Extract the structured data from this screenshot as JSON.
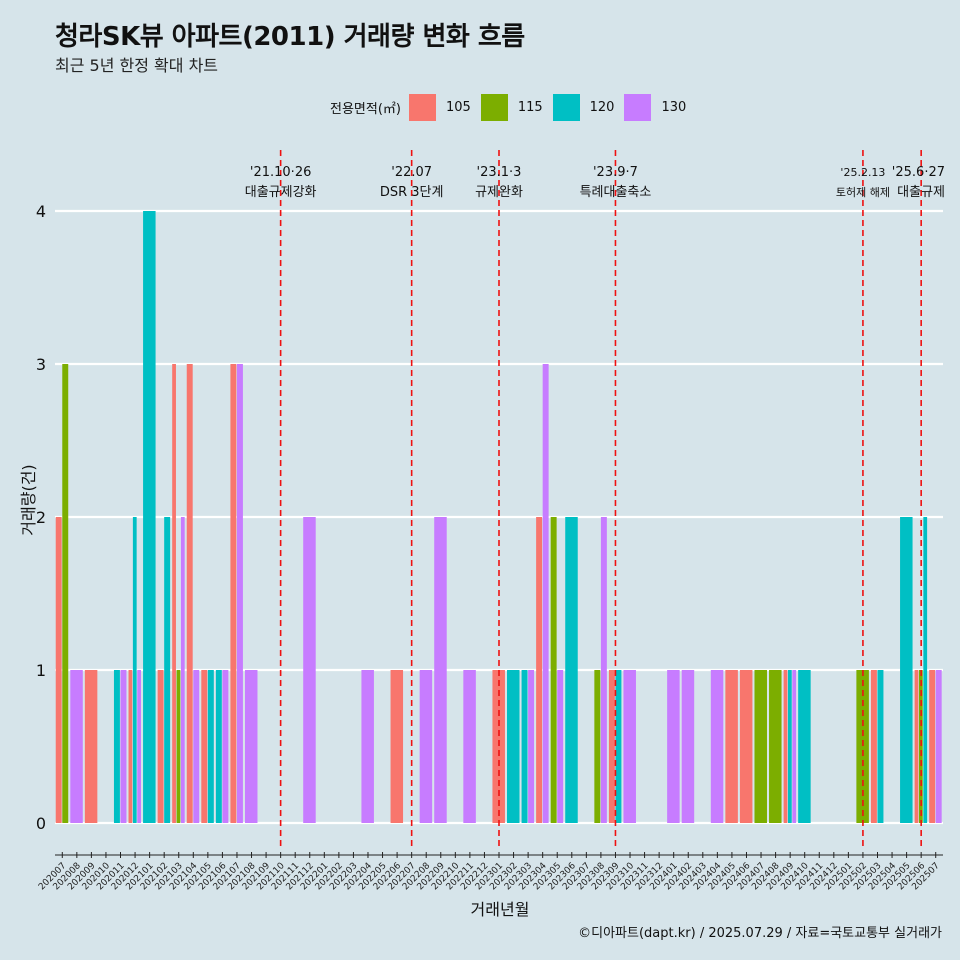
{
  "title": "청라SK뷰 아파트(2011) 거래량 변화 흐름",
  "subtitle": "최근 5년 한정 확대 차트",
  "legend": {
    "title": "전용면적(㎡)",
    "items": [
      {
        "label": "105",
        "color": "#f8766d"
      },
      {
        "label": "115",
        "color": "#7cae00"
      },
      {
        "label": "120",
        "color": "#00bfc4"
      },
      {
        "label": "130",
        "color": "#c77cff"
      }
    ]
  },
  "footer": "©디아파트(dapt.kr) / 2025.07.29 / 자료=국토교통부 실거래가",
  "chart_data": {
    "type": "bar",
    "title": "청라SK뷰 아파트(2011) 거래량 변화 흐름",
    "xlabel": "거래년월",
    "ylabel": "거래량(건)",
    "ylim": [
      0,
      4
    ],
    "yticks": [
      0,
      1,
      2,
      3,
      4
    ],
    "categories": [
      "202007",
      "202008",
      "202009",
      "202010",
      "202011",
      "202012",
      "202101",
      "202102",
      "202103",
      "202104",
      "202105",
      "202106",
      "202107",
      "202108",
      "202109",
      "202110",
      "202111",
      "202112",
      "202201",
      "202202",
      "202203",
      "202204",
      "202205",
      "202206",
      "202207",
      "202208",
      "202209",
      "202210",
      "202211",
      "202212",
      "202301",
      "202302",
      "202303",
      "202304",
      "202305",
      "202306",
      "202307",
      "202308",
      "202309",
      "202310",
      "202311",
      "202312",
      "202401",
      "202402",
      "202403",
      "202404",
      "202405",
      "202406",
      "202407",
      "202408",
      "202409",
      "202410",
      "202411",
      "202412",
      "202501",
      "202502",
      "202503",
      "202504",
      "202505",
      "202506",
      "202507"
    ],
    "series": [
      {
        "name": "105",
        "color": "#f8766d",
        "values": [
          2,
          0,
          1,
          0,
          0,
          1,
          0,
          1,
          3,
          3,
          1,
          0,
          3,
          0,
          0,
          0,
          0,
          0,
          0,
          0,
          0,
          0,
          0,
          1,
          0,
          0,
          0,
          0,
          0,
          0,
          1,
          0,
          0,
          2,
          0,
          0,
          0,
          0,
          1,
          0,
          0,
          0,
          0,
          0,
          0,
          0,
          1,
          1,
          0,
          0,
          1,
          0,
          0,
          0,
          0,
          0,
          1,
          0,
          0,
          1,
          1
        ]
      },
      {
        "name": "115",
        "color": "#7cae00",
        "values": [
          3,
          0,
          0,
          0,
          0,
          0,
          0,
          0,
          1,
          0,
          0,
          0,
          0,
          0,
          0,
          0,
          0,
          0,
          0,
          0,
          0,
          0,
          0,
          0,
          0,
          0,
          0,
          0,
          0,
          0,
          0,
          0,
          0,
          0,
          2,
          0,
          0,
          1,
          0,
          0,
          0,
          0,
          0,
          0,
          0,
          0,
          0,
          0,
          1,
          1,
          0,
          0,
          0,
          0,
          0,
          1,
          0,
          0,
          0,
          1,
          0
        ]
      },
      {
        "name": "120",
        "color": "#00bfc4",
        "values": [
          0,
          0,
          0,
          0,
          1,
          2,
          4,
          2,
          0,
          0,
          1,
          1,
          0,
          0,
          0,
          0,
          0,
          0,
          0,
          0,
          0,
          0,
          0,
          0,
          0,
          0,
          0,
          0,
          0,
          0,
          0,
          1,
          1,
          0,
          0,
          2,
          0,
          0,
          1,
          0,
          0,
          0,
          0,
          0,
          0,
          0,
          0,
          0,
          0,
          0,
          1,
          1,
          0,
          0,
          0,
          0,
          1,
          0,
          2,
          2,
          0
        ]
      },
      {
        "name": "130",
        "color": "#c77cff",
        "values": [
          0,
          1,
          0,
          0,
          1,
          1,
          0,
          0,
          2,
          1,
          0,
          1,
          3,
          1,
          0,
          0,
          0,
          2,
          0,
          0,
          0,
          1,
          0,
          0,
          0,
          1,
          2,
          0,
          1,
          0,
          0,
          0,
          1,
          3,
          1,
          0,
          0,
          2,
          0,
          1,
          0,
          0,
          1,
          1,
          0,
          1,
          0,
          0,
          0,
          0,
          1,
          0,
          0,
          0,
          0,
          0,
          0,
          0,
          0,
          0,
          1
        ]
      }
    ],
    "annotations": [
      {
        "x": "202110",
        "date": "'21.10·26",
        "label": "대출규제강화"
      },
      {
        "x": "202207",
        "date": "'22.07",
        "label": "DSR 3단계"
      },
      {
        "x": "202301",
        "date": "'23.1·3",
        "label": "규제완화"
      },
      {
        "x": "202309",
        "date": "'23.9·7",
        "label": "특례대출축소"
      },
      {
        "x": "202502",
        "date": "'25.2.13",
        "label": "토허제 해제"
      },
      {
        "x": "202506",
        "date": "'25.6·27",
        "label": "대출규제"
      }
    ]
  }
}
